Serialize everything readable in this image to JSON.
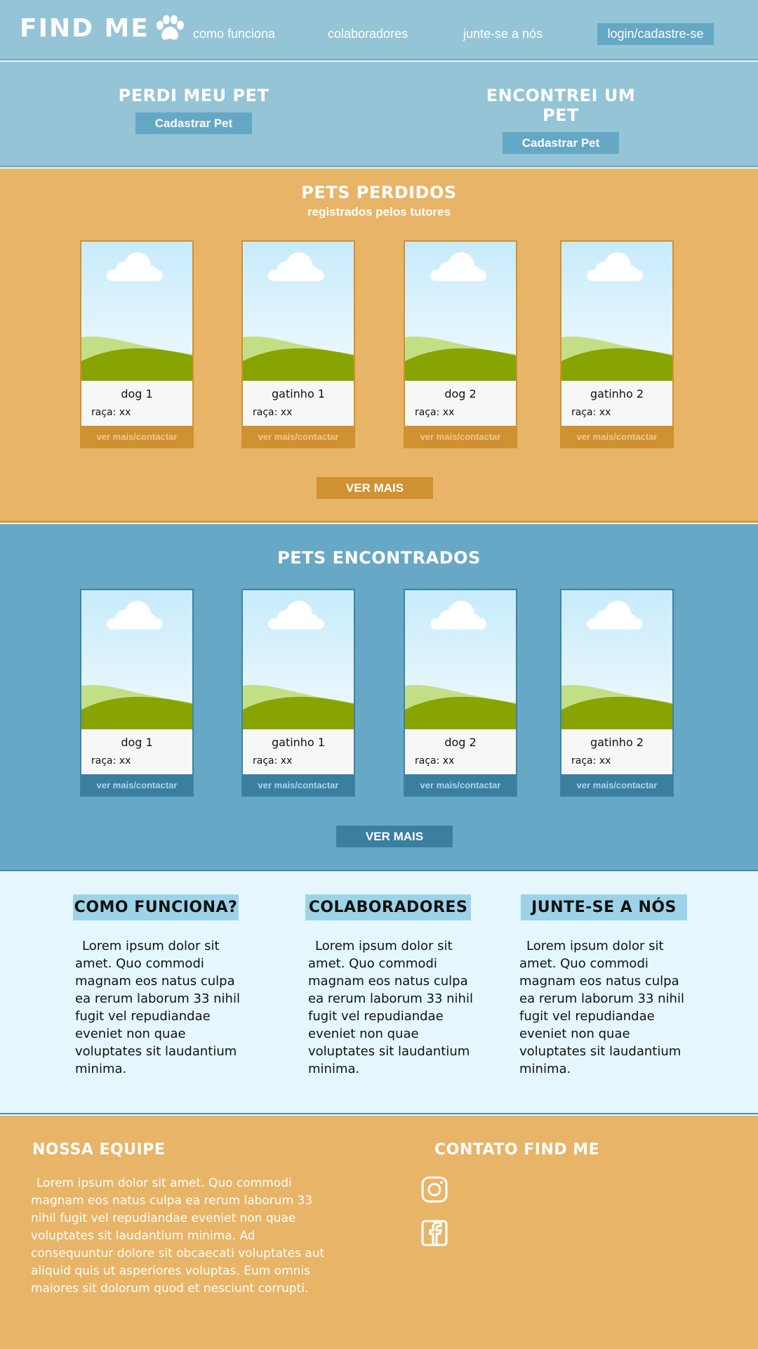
{
  "header": {
    "logo": "FIND ME",
    "nav": [
      "como funciona",
      "colaboradores",
      "junte-se a nós"
    ],
    "login": "login/cadastre-se"
  },
  "hero": {
    "lost_title": "PERDI MEU PET",
    "found_title": "ENCONTREI UM PET",
    "button": "Cadastrar Pet"
  },
  "lost": {
    "title": "PETS PERDIDOS",
    "subtitle": "registrados pelos tutores",
    "more": "VER MAIS",
    "cards": [
      {
        "name": "dog 1",
        "breed": "raça: xx",
        "action": "ver mais/contactar"
      },
      {
        "name": "gatinho 1",
        "breed": "raça: xx",
        "action": "ver mais/contactar"
      },
      {
        "name": "dog 2",
        "breed": "raça: xx",
        "action": "ver mais/contactar"
      },
      {
        "name": "gatinho 2",
        "breed": "raça: xx",
        "action": "ver mais/contactar"
      }
    ]
  },
  "found": {
    "title": "PETS ENCONTRADOS",
    "more": "VER MAIS",
    "cards": [
      {
        "name": "dog 1",
        "breed": "raça: xx",
        "action": "ver mais/contactar"
      },
      {
        "name": "gatinho 1",
        "breed": "raça: xx",
        "action": "ver mais/contactar"
      },
      {
        "name": "dog 2",
        "breed": "raça: xx",
        "action": "ver mais/contactar"
      },
      {
        "name": "gatinho 2",
        "breed": "raça: xx",
        "action": "ver mais/contactar"
      }
    ]
  },
  "info": [
    {
      "title": "COMO FUNCIONA?",
      "text": "Lorem ipsum dolor sit amet. Quo commodi magnam eos natus culpa ea rerum laborum 33 nihil fugit vel repudiandae eveniet non quae voluptates sit laudantium minima."
    },
    {
      "title": "COLABORADORES",
      "text": "Lorem ipsum dolor sit amet. Quo commodi magnam eos natus culpa ea rerum laborum 33 nihil fugit vel repudiandae eveniet non quae voluptates sit laudantium minima."
    },
    {
      "title": "JUNTE-SE A NÓS",
      "text": "Lorem ipsum dolor sit amet. Quo commodi magnam eos natus culpa ea rerum laborum 33 nihil fugit vel repudiandae eveniet non quae voluptates sit laudantium minima."
    }
  ],
  "footer": {
    "team_title": "NOSSA EQUIPE",
    "team_text": "Lorem ipsum dolor sit amet. Quo commodi magnam eos natus culpa ea rerum laborum 33 nihil fugit vel repudiandae eveniet non quae voluptates sit laudantium minima. Ad consequuntur dolore sit obcaecati voluptates aut aliquid quis ut asperiores voluptas. Eum omnis maiores sit dolorum quod et nesciunt corrupti.",
    "contact_title": "CONTATO FIND ME",
    "icons": [
      "instagram-icon",
      "facebook-icon"
    ]
  },
  "colors": {
    "blue_light": "#94c4d6",
    "blue": "#68a8c7",
    "blue_dark": "#3a7fa0",
    "orange": "#e8b467",
    "orange_dark": "#cf9131",
    "pale": "#e5f7fd"
  }
}
